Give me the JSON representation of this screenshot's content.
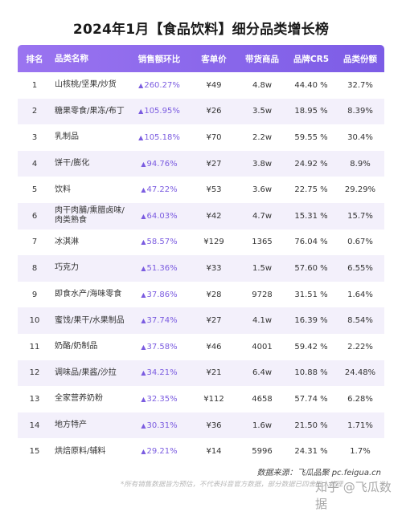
{
  "title": "2024年1月【食品饮料】细分品类增长榜",
  "headers": [
    "排名",
    "品类名称",
    "销售额环比",
    "客单价",
    "带货商品",
    "品牌CR5",
    "品类份额"
  ],
  "rows": [
    {
      "rank": "1",
      "name": "山核桃/坚果/炒货",
      "growth": "260.27%",
      "price": "¥49",
      "items": "4.8w",
      "cr5": "44.40 %",
      "share": "32.7%"
    },
    {
      "rank": "2",
      "name": "糖果零食/果冻/布丁",
      "growth": "105.95%",
      "price": "¥26",
      "items": "3.5w",
      "cr5": "18.95 %",
      "share": "8.39%"
    },
    {
      "rank": "3",
      "name": "乳制品",
      "growth": "105.18%",
      "price": "¥70",
      "items": "2.2w",
      "cr5": "59.55 %",
      "share": "30.4%"
    },
    {
      "rank": "4",
      "name": "饼干/膨化",
      "growth": "94.76%",
      "price": "¥27",
      "items": "3.8w",
      "cr5": "24.92 %",
      "share": "8.9%"
    },
    {
      "rank": "5",
      "name": "饮料",
      "growth": "47.22%",
      "price": "¥53",
      "items": "3.6w",
      "cr5": "22.75 %",
      "share": "29.29%"
    },
    {
      "rank": "6",
      "name": "肉干肉脯/熏腊卤味/肉类熟食",
      "growth": "64.03%",
      "price": "¥42",
      "items": "4.7w",
      "cr5": "15.31 %",
      "share": "15.7%"
    },
    {
      "rank": "7",
      "name": "冰淇淋",
      "growth": "58.57%",
      "price": "¥129",
      "items": "1365",
      "cr5": "76.04 %",
      "share": "0.67%"
    },
    {
      "rank": "8",
      "name": "巧克力",
      "growth": "51.36%",
      "price": "¥33",
      "items": "1.5w",
      "cr5": "57.60 %",
      "share": "6.55%"
    },
    {
      "rank": "9",
      "name": "即食水产/海味零食",
      "growth": "37.86%",
      "price": "¥28",
      "items": "9728",
      "cr5": "31.51 %",
      "share": "1.64%"
    },
    {
      "rank": "10",
      "name": "蜜饯/果干/水果制品",
      "growth": "37.74%",
      "price": "¥27",
      "items": "4.1w",
      "cr5": "16.39 %",
      "share": "8.54%"
    },
    {
      "rank": "11",
      "name": "奶酪/奶制品",
      "growth": "37.58%",
      "price": "¥46",
      "items": "4001",
      "cr5": "59.42 %",
      "share": "2.22%"
    },
    {
      "rank": "12",
      "name": "调味品/果酱/沙拉",
      "growth": "34.21%",
      "price": "¥21",
      "items": "6.4w",
      "cr5": "10.88 %",
      "share": "24.48%"
    },
    {
      "rank": "13",
      "name": "全家营养奶粉",
      "growth": "32.35%",
      "price": "¥112",
      "items": "4658",
      "cr5": "57.74 %",
      "share": "6.28%"
    },
    {
      "rank": "14",
      "name": "地方特产",
      "growth": "30.31%",
      "price": "¥36",
      "items": "1.6w",
      "cr5": "21.50 %",
      "share": "1.71%"
    },
    {
      "rank": "15",
      "name": "烘焙原料/辅料",
      "growth": "29.21%",
      "price": "¥14",
      "items": "5996",
      "cr5": "24.31 %",
      "share": "1.7%"
    }
  ],
  "up_symbol": "▲",
  "source": "数据来源：飞瓜品聚 pc.feigua.cn",
  "note": "*所有销售数据皆为预估，不代表抖音官方数据，部分数据已四舍五入处理",
  "watermark": "知乎 @飞瓜数据",
  "colors": {
    "header_start": "#9a74f0",
    "header_end": "#7c5ce6",
    "growth": "#7b5ce0",
    "alt_row": "#f3f0fb"
  }
}
